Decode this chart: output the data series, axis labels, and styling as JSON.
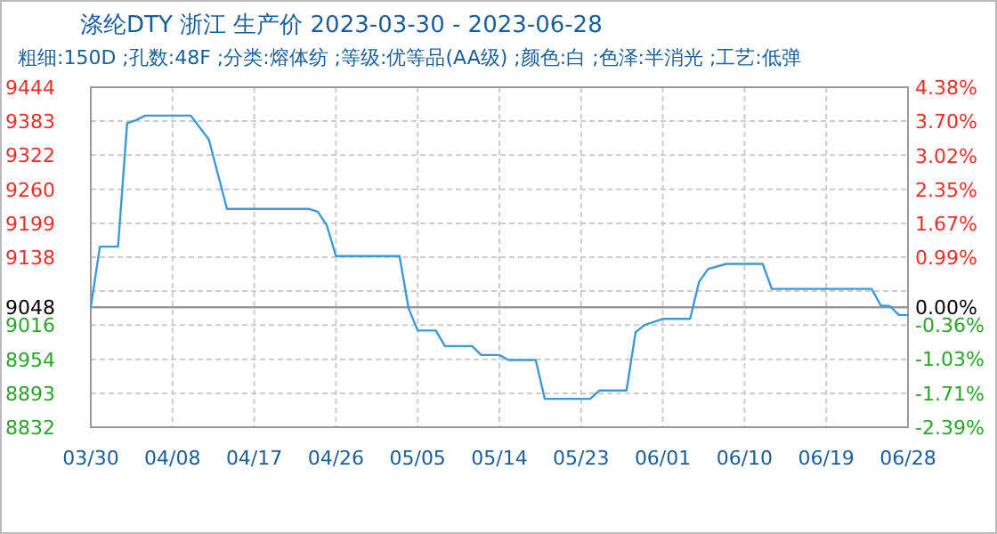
{
  "chart_data": {
    "type": "line",
    "title": "涤纶DTY 浙江 生产价 2023-03-30 - 2023-06-28",
    "subtitle": "粗细:150D ;孔数:48F ;分类:熔体纺 ;等级:优等品(AA级) ;颜色:白 ;色泽:半消光 ;工艺:低弹",
    "x": [
      "2023-03-30",
      "2023-03-31",
      "2023-04-02",
      "2023-04-03",
      "2023-04-04",
      "2023-04-05",
      "2023-04-10",
      "2023-04-12",
      "2023-04-14",
      "2023-04-23",
      "2023-04-24",
      "2023-04-25",
      "2023-04-26",
      "2023-05-03",
      "2023-05-04",
      "2023-05-05",
      "2023-05-07",
      "2023-05-08",
      "2023-05-11",
      "2023-05-12",
      "2023-05-14",
      "2023-05-15",
      "2023-05-18",
      "2023-05-19",
      "2023-05-24",
      "2023-05-25",
      "2023-05-28",
      "2023-05-29",
      "2023-05-30",
      "2023-06-01",
      "2023-06-04",
      "2023-06-05",
      "2023-06-06",
      "2023-06-08",
      "2023-06-12",
      "2023-06-13",
      "2023-06-24",
      "2023-06-25",
      "2023-06-26",
      "2023-06-27",
      "2023-06-28"
    ],
    "series": [
      {
        "color": "#3d9ad6",
        "values": [
          9048,
          9157,
          9157,
          9379,
          9385,
          9393,
          9393,
          9350,
          9225,
          9225,
          9220,
          9195,
          9140,
          9140,
          9046,
          9006,
          9006,
          8978,
          8978,
          8962,
          8962,
          8953,
          8953,
          8883,
          8883,
          8898,
          8898,
          9003,
          9016,
          9027,
          9027,
          9094,
          9117,
          9126,
          9126,
          9081,
          9081,
          9051,
          9050,
          9034,
          9034
        ]
      }
    ],
    "xlim": [
      "2023-03-30",
      "2023-06-28"
    ],
    "xticks": [
      {
        "value": "2023-03-30",
        "label": "03/30"
      },
      {
        "value": "2023-04-08",
        "label": "04/08"
      },
      {
        "value": "2023-04-17",
        "label": "04/17"
      },
      {
        "value": "2023-04-26",
        "label": "04/26"
      },
      {
        "value": "2023-05-05",
        "label": "05/05"
      },
      {
        "value": "2023-05-14",
        "label": "05/14"
      },
      {
        "value": "2023-05-23",
        "label": "05/23"
      },
      {
        "value": "2023-06-01",
        "label": "06/01"
      },
      {
        "value": "2023-06-10",
        "label": "06/10"
      },
      {
        "value": "2023-06-19",
        "label": "06/19"
      },
      {
        "value": "2023-06-28",
        "label": "06/28"
      }
    ],
    "ylim": [
      8832,
      9444
    ],
    "yticks": [
      9444,
      9383,
      9322,
      9260,
      9199,
      9138,
      {
        "value": 9077,
        "label": null
      },
      9048,
      9016,
      8954,
      8893,
      8832
    ],
    "y2lim": [
      -2.39,
      4.38
    ],
    "y2ticks": [
      {
        "value": 4.38,
        "label": "4.38%"
      },
      {
        "value": 3.7,
        "label": "3.70%"
      },
      {
        "value": 3.02,
        "label": "3.02%"
      },
      {
        "value": 2.35,
        "label": "2.35%"
      },
      {
        "value": 1.67,
        "label": "1.67%"
      },
      {
        "value": 0.99,
        "label": "0.99%"
      },
      {
        "value": 0.0,
        "label": "0.00%"
      },
      {
        "value": -0.36,
        "label": "-0.36%"
      },
      {
        "value": -1.03,
        "label": "-1.03%"
      },
      {
        "value": -1.71,
        "label": "-1.71%"
      },
      {
        "value": -2.39,
        "label": "-2.39%"
      }
    ],
    "ref_lines": [
      {
        "axis": "y",
        "value": 9048,
        "color": "#999999"
      }
    ],
    "grid": true,
    "line_style": "solid",
    "marker": "none"
  }
}
